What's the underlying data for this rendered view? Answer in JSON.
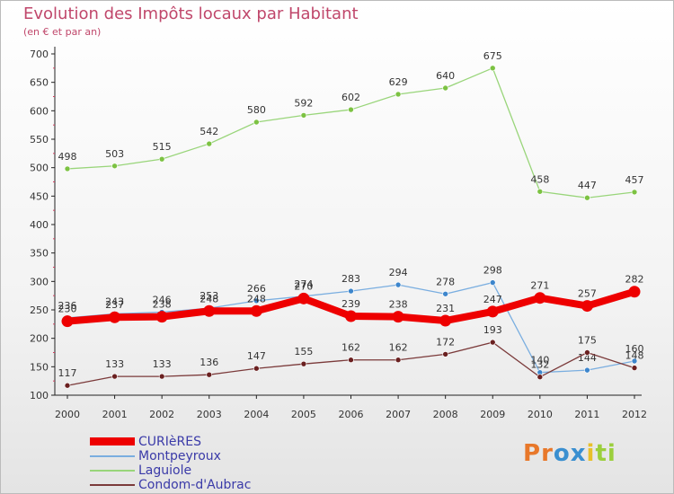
{
  "title": "Evolution des Impôts locaux par Habitant",
  "subtitle": "(en € et par an)",
  "brand": {
    "letters": [
      "P",
      "r",
      "o",
      "x",
      "i",
      "t",
      "i"
    ],
    "colors": [
      "#e8782a",
      "#e8782a",
      "#3a8fd0",
      "#3a8fd0",
      "#e8c02a",
      "#9bcf3c",
      "#9bcf3c"
    ]
  },
  "chart_data": {
    "type": "line",
    "title": "Evolution des Impôts locaux par Habitant",
    "ylabel": "(en € et par an)",
    "xlabel": "",
    "x": [
      "2000",
      "2001",
      "2002",
      "2003",
      "2004",
      "2005",
      "2006",
      "2007",
      "2008",
      "2009",
      "2010",
      "2011",
      "2012"
    ],
    "ylim": [
      100,
      700
    ],
    "yticks": [
      100,
      150,
      200,
      250,
      300,
      350,
      400,
      450,
      500,
      550,
      600,
      650,
      700
    ],
    "grid": false,
    "legend_position": "bottom-left",
    "series": [
      {
        "name": "Laguiole",
        "color": "#99d57a",
        "marker": "#7cc242",
        "values": [
          498,
          503,
          515,
          542,
          580,
          592,
          602,
          629,
          640,
          675,
          458,
          447,
          457
        ]
      },
      {
        "name": "Montpeyroux",
        "color": "#7aaee0",
        "marker": "#3d86cc",
        "values": [
          236,
          243,
          246,
          253,
          266,
          274,
          283,
          294,
          278,
          298,
          140,
          144,
          160
        ]
      },
      {
        "name": "Condom-d'Aubrac",
        "color": "#7b3a3a",
        "marker": "#6a2020",
        "values": [
          117,
          133,
          133,
          136,
          147,
          155,
          162,
          162,
          172,
          193,
          132,
          175,
          148
        ]
      },
      {
        "name": "CURIèRES",
        "color": "#ee0000",
        "marker": "#ee0000",
        "values": [
          230,
          237,
          238,
          248,
          248,
          270,
          239,
          238,
          231,
          247,
          271,
          257,
          282
        ]
      }
    ],
    "legend": [
      "CURIèRES",
      "Montpeyroux",
      "Laguiole",
      "Condom-d'Aubrac"
    ]
  }
}
